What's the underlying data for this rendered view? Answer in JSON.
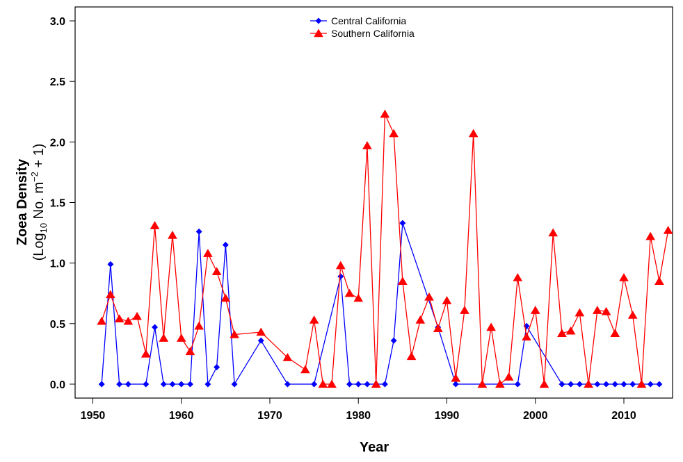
{
  "chart_data": {
    "type": "line",
    "x_label": "Year",
    "y_label_title": "Zoea Density",
    "y_label_units": [
      "(Log",
      "10",
      " No. m",
      "−2",
      " + 1)"
    ],
    "xlim": [
      1948,
      2015.5
    ],
    "ylim": [
      -0.115,
      3.115
    ],
    "xticks": [
      1950,
      1960,
      1970,
      1980,
      1990,
      2000,
      2010
    ],
    "yticks": [
      {
        "value": 0,
        "label": "0.0"
      },
      {
        "value": 0.5,
        "label": "0.5"
      },
      {
        "value": 1,
        "label": "1.0"
      },
      {
        "value": 1.5,
        "label": "1.5"
      },
      {
        "value": 2,
        "label": "2.0"
      },
      {
        "value": 2.5,
        "label": "2.5"
      },
      {
        "value": 3,
        "label": "3.0"
      }
    ],
    "legend": "top",
    "series": [
      {
        "name": "Central California",
        "color": "#0000ff",
        "marker": "diamond",
        "x": [
          1951,
          1952,
          1953,
          1954,
          1956,
          1957,
          1958,
          1959,
          1960,
          1961,
          1962,
          1963,
          1964,
          1965,
          1966,
          1969,
          1972,
          1975,
          1978,
          1979,
          1980,
          1981,
          1982,
          1983,
          1984,
          1985,
          1989,
          1991,
          1996,
          1998,
          1999,
          2003,
          2004,
          2005,
          2006,
          2007,
          2008,
          2009,
          2010,
          2011,
          2012,
          2013,
          2014
        ],
        "values": [
          0,
          0.99,
          0,
          0,
          0,
          0.47,
          0,
          0,
          0,
          0,
          1.26,
          0,
          0.14,
          1.15,
          0,
          0.36,
          0,
          0,
          0.89,
          0,
          0,
          0,
          0,
          0,
          0.36,
          1.33,
          0.47,
          0,
          0,
          0,
          0.48,
          0,
          0,
          0,
          0,
          0,
          0,
          0,
          0,
          0,
          0,
          0,
          0
        ]
      },
      {
        "name": "Southern California",
        "color": "#ff0000",
        "marker": "triangle",
        "x": [
          1951,
          1952,
          1953,
          1954,
          1955,
          1956,
          1957,
          1958,
          1959,
          1960,
          1961,
          1962,
          1963,
          1964,
          1965,
          1966,
          1969,
          1972,
          1974,
          1975,
          1976,
          1977,
          1978,
          1979,
          1980,
          1981,
          1982,
          1983,
          1984,
          1985,
          1986,
          1987,
          1988,
          1989,
          1990,
          1991,
          1992,
          1993,
          1994,
          1995,
          1996,
          1997,
          1998,
          1999,
          2000,
          2001,
          2002,
          2003,
          2004,
          2005,
          2006,
          2007,
          2008,
          2009,
          2010,
          2011,
          2012,
          2013,
          2014,
          2015
        ],
        "values": [
          0.52,
          0.74,
          0.54,
          0.52,
          0.56,
          0.25,
          1.31,
          0.38,
          1.23,
          0.38,
          0.27,
          0.48,
          1.08,
          0.93,
          0.71,
          0.41,
          0.43,
          0.22,
          0.12,
          0.53,
          0,
          0,
          0.98,
          0.75,
          0.71,
          1.97,
          0,
          2.23,
          2.07,
          0.85,
          0.23,
          0.53,
          0.72,
          0.46,
          0.69,
          0.05,
          0.61,
          2.07,
          0,
          0.47,
          0,
          0.06,
          0.88,
          0.39,
          0.61,
          0,
          1.25,
          0.42,
          0.44,
          0.59,
          0,
          0.61,
          0.6,
          0.42,
          0.88,
          0.57,
          0,
          1.22,
          0.85,
          1.27
        ]
      }
    ]
  }
}
